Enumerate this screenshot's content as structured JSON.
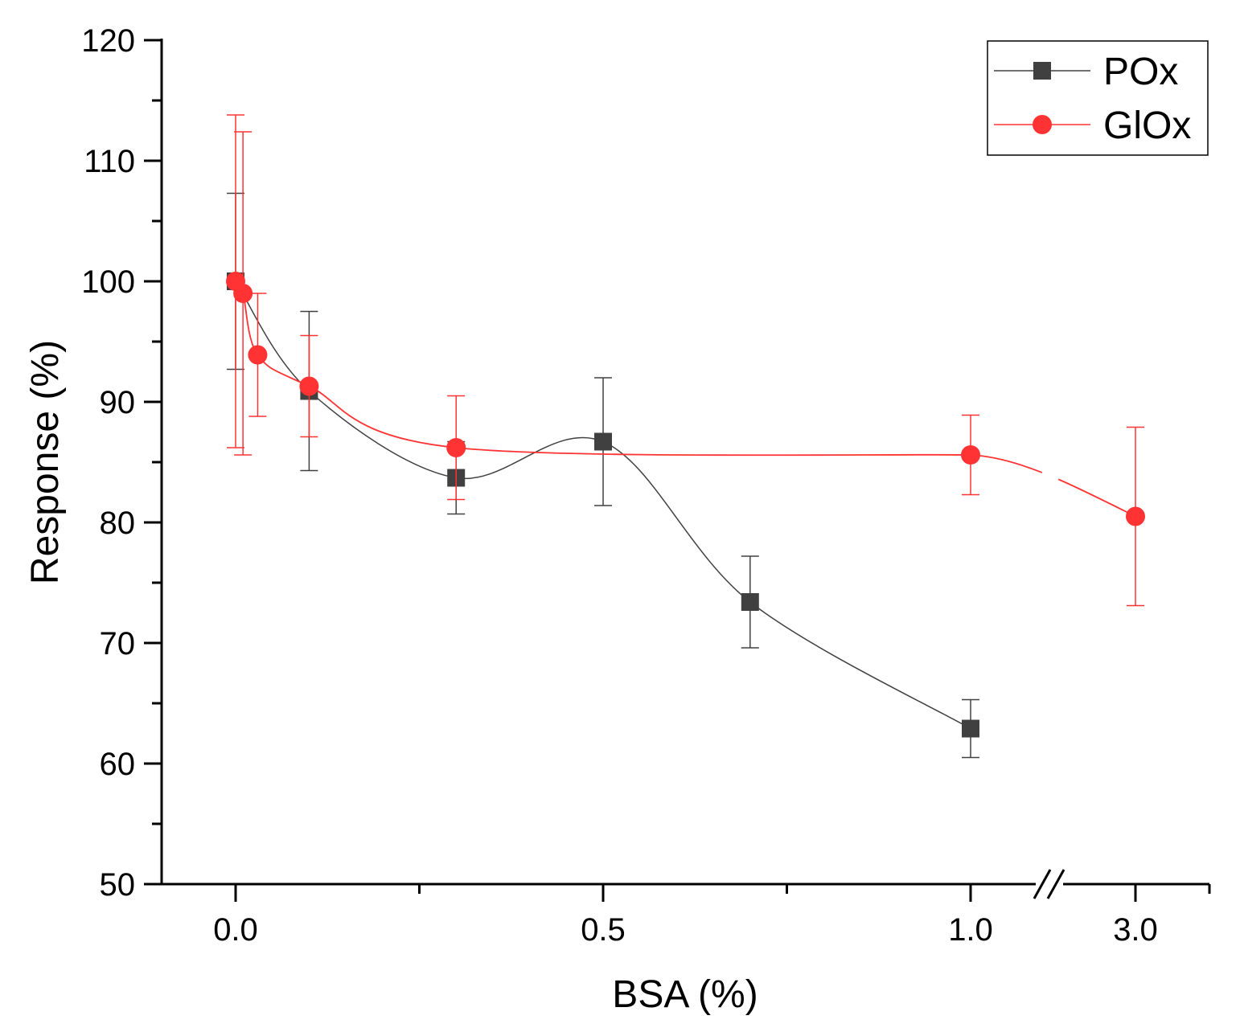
{
  "chart_data": {
    "type": "scatter",
    "xlabel": "BSA (%)",
    "ylabel": "Response (%)",
    "ylim": [
      50,
      120
    ],
    "y_ticks": [
      50,
      60,
      70,
      80,
      90,
      100,
      110,
      120
    ],
    "x_ticks": [
      "0.0",
      "0.5",
      "1.0",
      "3.0"
    ],
    "x_axis_break": "between 1.0 and 3.0",
    "legend_position": "top-right",
    "grid": false,
    "series": [
      {
        "name": "POx",
        "color": "#404040",
        "marker": "square",
        "line": "smoothed",
        "points": [
          {
            "x": 0.0,
            "y": 100.0,
            "err": 7.3
          },
          {
            "x": 0.1,
            "y": 90.9,
            "err": 6.6
          },
          {
            "x": 0.3,
            "y": 83.7,
            "err": 3.0
          },
          {
            "x": 0.5,
            "y": 86.7,
            "err": 5.3
          },
          {
            "x": 0.7,
            "y": 73.4,
            "err": 3.8
          },
          {
            "x": 1.0,
            "y": 62.9,
            "err": 2.4
          }
        ]
      },
      {
        "name": "GlOx",
        "color": "#ff3333",
        "marker": "circle",
        "line": "smoothed",
        "points": [
          {
            "x": 0.0,
            "y": 100.0,
            "err": 13.8
          },
          {
            "x": 0.01,
            "y": 99.0,
            "err": 13.4
          },
          {
            "x": 0.03,
            "y": 93.9,
            "err": 5.1
          },
          {
            "x": 0.1,
            "y": 91.3,
            "err": 4.2
          },
          {
            "x": 0.3,
            "y": 86.2,
            "err": 4.3
          },
          {
            "x": 1.0,
            "y": 85.6,
            "err": 3.3
          },
          {
            "x": 3.0,
            "y": 80.5,
            "err": 7.4
          }
        ]
      }
    ]
  }
}
